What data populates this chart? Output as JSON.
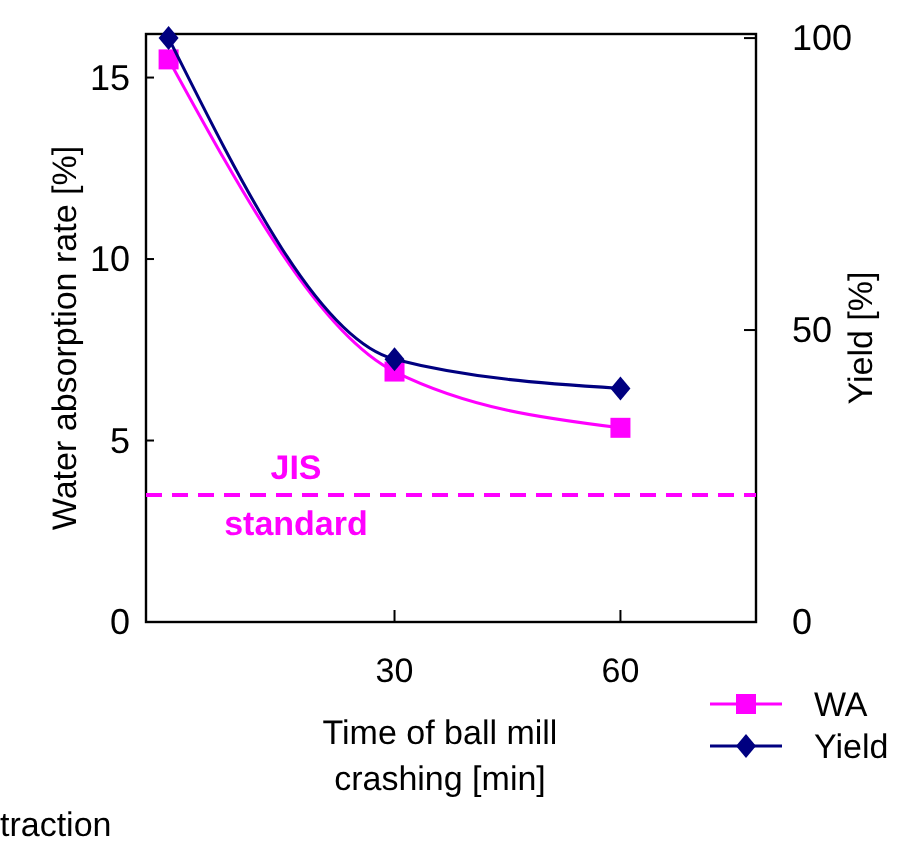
{
  "chart_data": {
    "type": "line",
    "xlabel": "Time of ball mill crashing [min]",
    "ylabel": "Water absorption rate [%]",
    "y2label": "Yield [%]",
    "x": [
      0,
      30,
      60
    ],
    "xlim": [
      -3,
      78
    ],
    "xticks": [
      30,
      60
    ],
    "ylim": [
      0,
      16.2
    ],
    "yticks": [
      0,
      5,
      10,
      15
    ],
    "y2lim": [
      0,
      100.7
    ],
    "y2ticks": [
      0,
      50,
      100
    ],
    "series": [
      {
        "name": "WA",
        "color": "#ff00ff",
        "values": [
          15.5,
          6.9,
          5.35
        ],
        "marker": "square"
      },
      {
        "name": "Yield",
        "color": "#000080",
        "values": [
          100,
          45,
          40
        ],
        "marker": "diamond",
        "axis": "y2"
      }
    ],
    "ref_lines": [
      {
        "axis": "y",
        "value": 3.5,
        "label": "JIS standard",
        "color": "#ff00ff",
        "line_style": "dashed"
      }
    ],
    "legend": "bottom right",
    "grid": false,
    "annotations": [
      "traction"
    ]
  }
}
